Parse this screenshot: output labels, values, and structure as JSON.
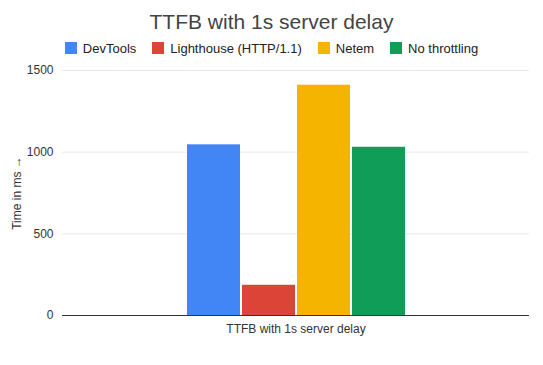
{
  "chart_data": {
    "type": "bar",
    "title": "TTFB with 1s server delay",
    "y_label": "Time in ms",
    "categories": [
      "TTFB with 1s server delay"
    ],
    "series": [
      {
        "name": "DevTools",
        "color": "#4285f4",
        "values": [
          1045
        ]
      },
      {
        "name": "Lighthouse (HTTP/1.1)",
        "color": "#db4437",
        "values": [
          185
        ]
      },
      {
        "name": "Netem",
        "color": "#f4b400",
        "values": [
          1410
        ]
      },
      {
        "name": "No throttling",
        "color": "#0f9d58",
        "values": [
          1030
        ]
      }
    ],
    "ylim": [
      0,
      1500
    ],
    "yticks": [
      0,
      500,
      1000,
      1500
    ],
    "grid": true,
    "legend": "top"
  }
}
